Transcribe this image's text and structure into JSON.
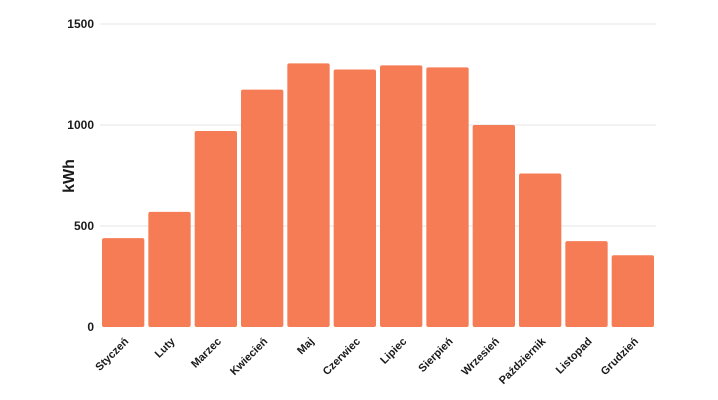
{
  "chart_data": {
    "type": "bar",
    "ylabel": "kWh",
    "xlabel": "",
    "categories": [
      "Styczeń",
      "Luty",
      "Marzec",
      "Kwiecień",
      "Maj",
      "Czerwiec",
      "Lipiec",
      "Sierpień",
      "Wrzesień",
      "Październik",
      "Listopad",
      "Grudzień"
    ],
    "values": [
      440,
      570,
      970,
      1175,
      1305,
      1275,
      1295,
      1285,
      1000,
      760,
      425,
      355
    ],
    "ylim": [
      0,
      1500
    ],
    "yticks": [
      "0",
      "500",
      "1000",
      "1500"
    ],
    "grid": true,
    "bar_color": "#f67c55"
  }
}
